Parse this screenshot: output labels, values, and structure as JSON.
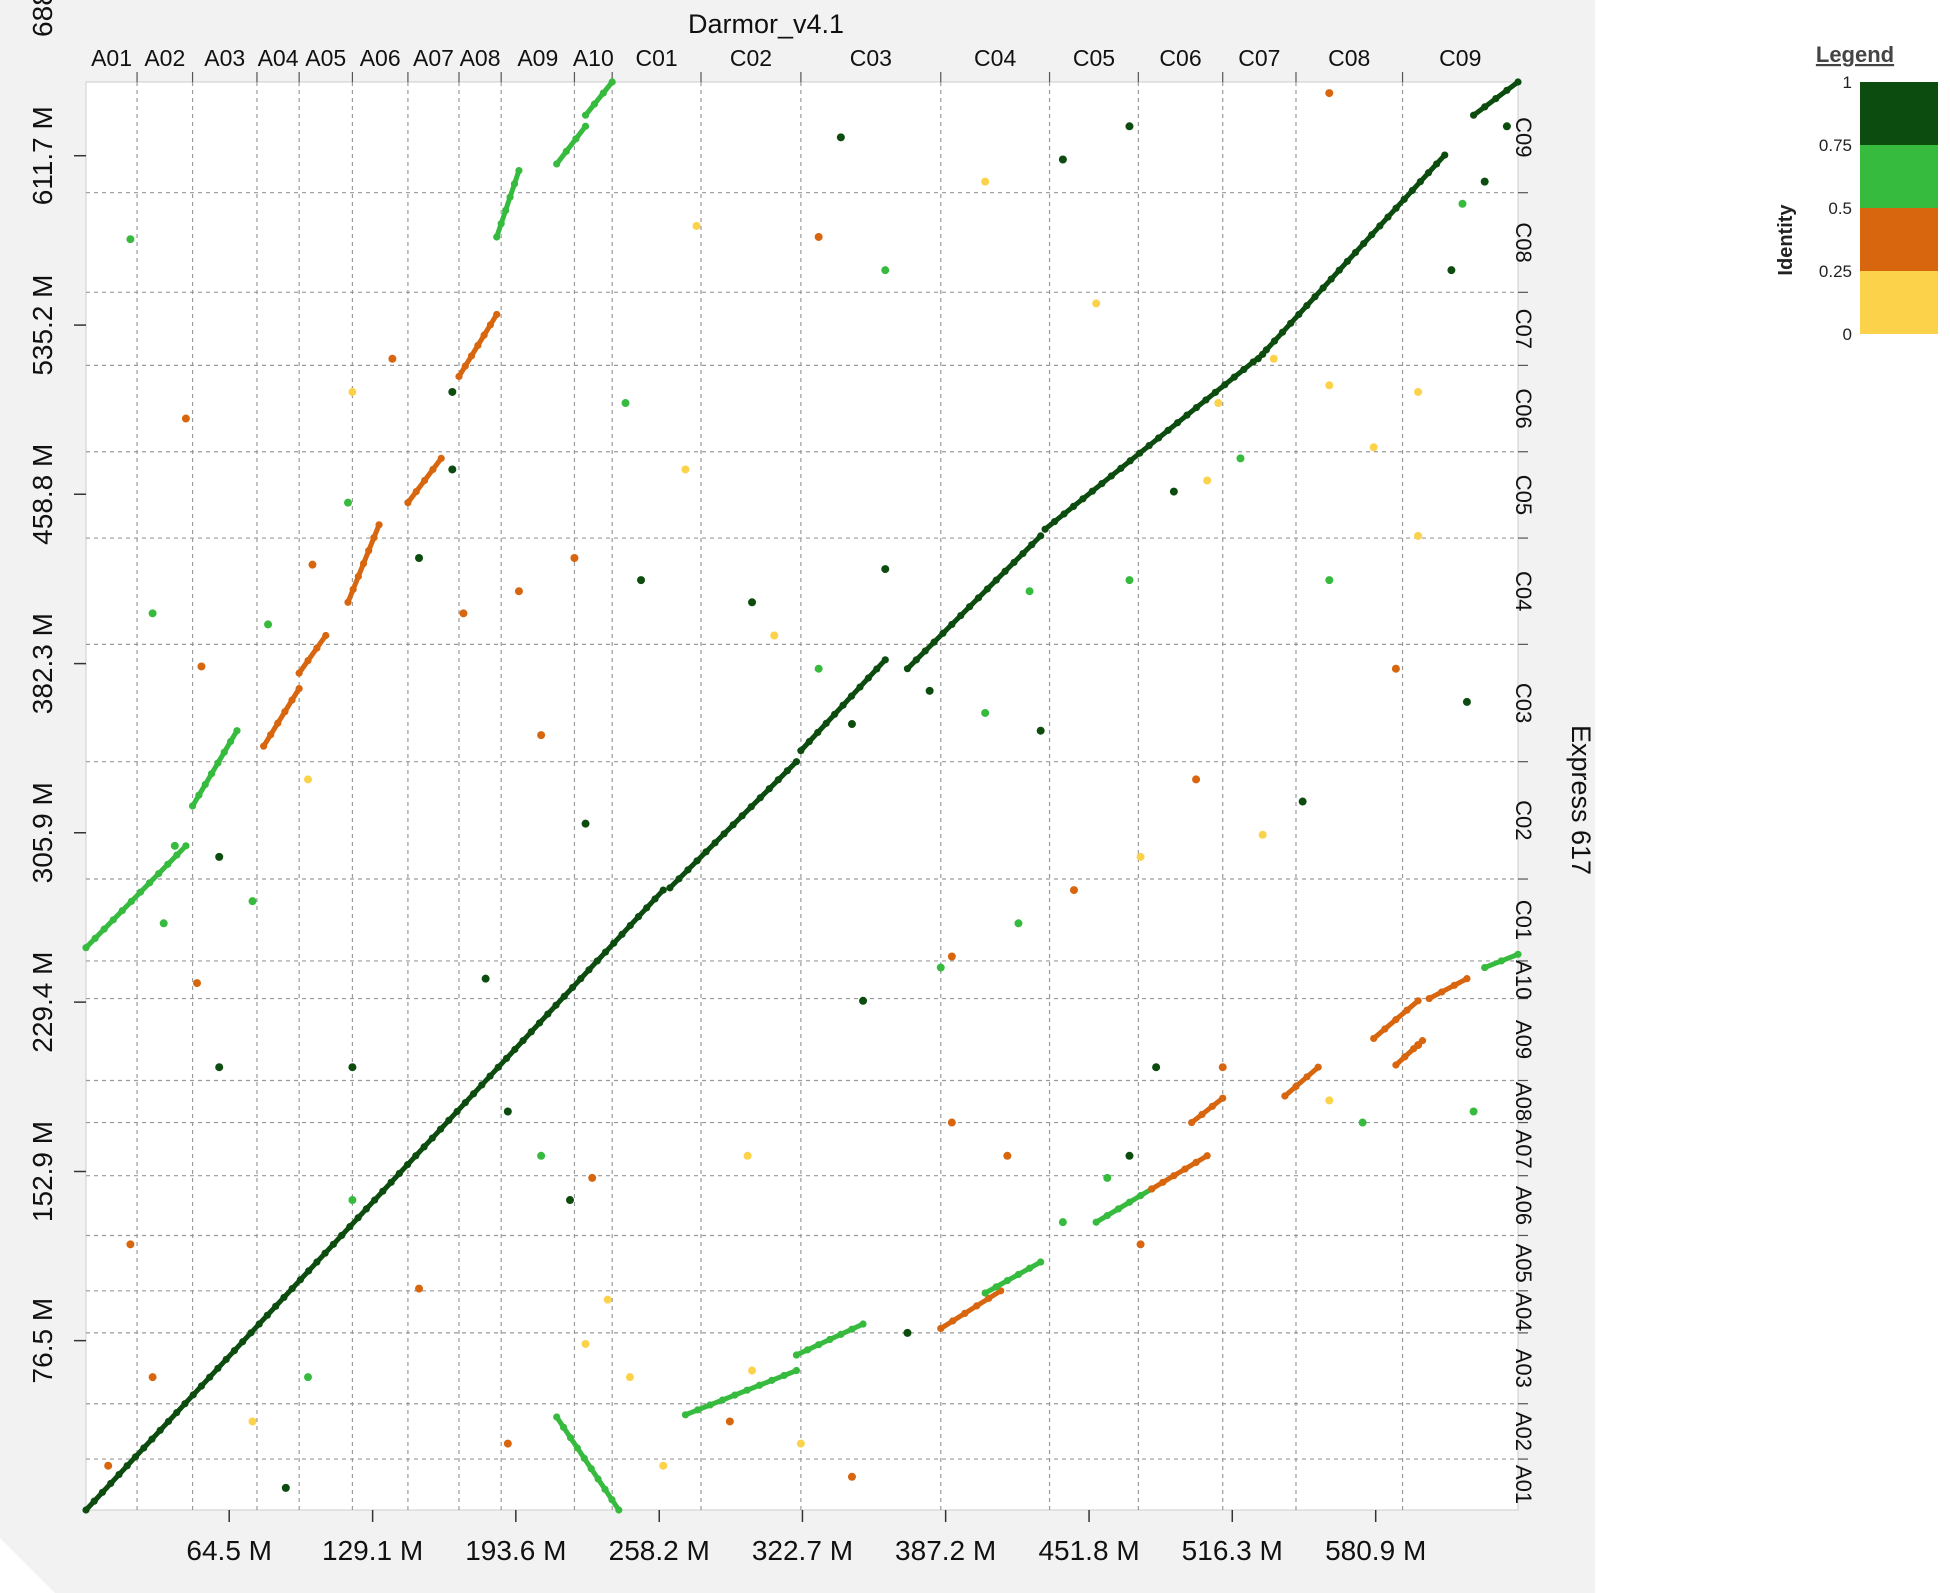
{
  "chart_data": {
    "type": "scatter",
    "title": "Darmor_v4.1",
    "xlabel": "",
    "ylabel": "Express 617",
    "x_axis_title": "Darmor_v4.1",
    "y_axis_title": "Express 617",
    "xlim": [
      0,
      645
    ],
    "ylim": [
      0,
      645
    ],
    "x_ticks": [
      64.5,
      129.1,
      193.6,
      258.2,
      322.7,
      387.2,
      451.8,
      516.3,
      580.9
    ],
    "x_tick_labels": [
      "64.5 M",
      "129.1 M",
      "193.6 M",
      "258.2 M",
      "322.7 M",
      "387.2 M",
      "451.8 M",
      "516.3 M",
      "580.9 M"
    ],
    "y_ticks": [
      76.5,
      152.9,
      229.4,
      305.9,
      382.3,
      458.8,
      535.2,
      611.7,
      688.2
    ],
    "y_tick_labels": [
      "76.5 M",
      "152.9 M",
      "229.4 M",
      "305.9 M",
      "382.3 M",
      "458.8 M",
      "535.2 M",
      "611.7 M",
      "688.2 M"
    ],
    "x_chromosomes": [
      {
        "name": "A01",
        "end": 23
      },
      {
        "name": "A02",
        "end": 48
      },
      {
        "name": "A03",
        "end": 77
      },
      {
        "name": "A04",
        "end": 96
      },
      {
        "name": "A05",
        "end": 120
      },
      {
        "name": "A06",
        "end": 145
      },
      {
        "name": "A07",
        "end": 168
      },
      {
        "name": "A08",
        "end": 187
      },
      {
        "name": "A09",
        "end": 220
      },
      {
        "name": "A10",
        "end": 237
      },
      {
        "name": "C01",
        "end": 277
      },
      {
        "name": "C02",
        "end": 322
      },
      {
        "name": "C03",
        "end": 385
      },
      {
        "name": "C04",
        "end": 434
      },
      {
        "name": "C05",
        "end": 474
      },
      {
        "name": "C06",
        "end": 512
      },
      {
        "name": "C07",
        "end": 545
      },
      {
        "name": "C08",
        "end": 593
      },
      {
        "name": "C09",
        "end": 645
      }
    ],
    "y_chromosomes": [
      {
        "name": "A01",
        "end": 23
      },
      {
        "name": "A02",
        "end": 48
      },
      {
        "name": "A03",
        "end": 80
      },
      {
        "name": "A04",
        "end": 99
      },
      {
        "name": "A05",
        "end": 124
      },
      {
        "name": "A06",
        "end": 151
      },
      {
        "name": "A07",
        "end": 175
      },
      {
        "name": "A08",
        "end": 194
      },
      {
        "name": "A09",
        "end": 231
      },
      {
        "name": "A10",
        "end": 248
      },
      {
        "name": "C01",
        "end": 285
      },
      {
        "name": "C02",
        "end": 338
      },
      {
        "name": "C03",
        "end": 391
      },
      {
        "name": "C04",
        "end": 439
      },
      {
        "name": "C05",
        "end": 478
      },
      {
        "name": "C06",
        "end": 517
      },
      {
        "name": "C07",
        "end": 550
      },
      {
        "name": "C08",
        "end": 595
      },
      {
        "name": "C09",
        "end": 645
      }
    ],
    "colors": {
      "0": "#fbd24a",
      "0.25": "#d8660f",
      "0.5": "#36bb3f",
      "0.75": "#0c4c0f"
    },
    "legend": {
      "title": "Legend",
      "axis_label": "Identity",
      "ticks": [
        "1",
        "0.75",
        "0.5",
        "0.25",
        "0"
      ],
      "bins": [
        {
          "from": 0.75,
          "to": 1,
          "color": "#0c4c0f"
        },
        {
          "from": 0.5,
          "to": 0.75,
          "color": "#36bb3f"
        },
        {
          "from": 0.25,
          "to": 0.5,
          "color": "#d8660f"
        },
        {
          "from": 0,
          "to": 0.25,
          "color": "#fbd24a"
        }
      ]
    },
    "segments": [
      {
        "x": [
          0,
          260
        ],
        "y": [
          0,
          280
        ],
        "identity": 0.9
      },
      {
        "x": [
          263,
          320
        ],
        "y": [
          281,
          338
        ],
        "identity": 0.9
      },
      {
        "x": [
          322,
          360
        ],
        "y": [
          343,
          384
        ],
        "identity": 0.9
      },
      {
        "x": [
          370,
          430
        ],
        "y": [
          380,
          440
        ],
        "identity": 0.9
      },
      {
        "x": [
          432,
          530
        ],
        "y": [
          443,
          522
        ],
        "identity": 0.9
      },
      {
        "x": [
          528,
          612
        ],
        "y": [
          520,
          612
        ],
        "identity": 0.9
      },
      {
        "x": [
          625,
          645
        ],
        "y": [
          630,
          645
        ],
        "identity": 0.9
      },
      {
        "x": [
          240,
          212
        ],
        "y": [
          0,
          42
        ],
        "identity": 0.6
      },
      {
        "x": [
          270,
          320
        ],
        "y": [
          43,
          63
        ],
        "identity": 0.6
      },
      {
        "x": [
          320,
          350
        ],
        "y": [
          70,
          84
        ],
        "identity": 0.6
      },
      {
        "x": [
          385,
          412
        ],
        "y": [
          82,
          99
        ],
        "identity": 0.3
      },
      {
        "x": [
          405,
          430
        ],
        "y": [
          98,
          112
        ],
        "identity": 0.6
      },
      {
        "x": [
          455,
          480
        ],
        "y": [
          130,
          145
        ],
        "identity": 0.6
      },
      {
        "x": [
          480,
          505
        ],
        "y": [
          145,
          160
        ],
        "identity": 0.3
      },
      {
        "x": [
          498,
          512
        ],
        "y": [
          175,
          186
        ],
        "identity": 0.3
      },
      {
        "x": [
          540,
          555
        ],
        "y": [
          187,
          200
        ],
        "identity": 0.3
      },
      {
        "x": [
          590,
          602
        ],
        "y": [
          201,
          212
        ],
        "identity": 0.3
      },
      {
        "x": [
          580,
          600
        ],
        "y": [
          213,
          230
        ],
        "identity": 0.3
      },
      {
        "x": [
          605,
          622
        ],
        "y": [
          231,
          240
        ],
        "identity": 0.3
      },
      {
        "x": [
          630,
          645
        ],
        "y": [
          245,
          251
        ],
        "identity": 0.6
      },
      {
        "x": [
          0,
          45
        ],
        "y": [
          254,
          300
        ],
        "identity": 0.6
      },
      {
        "x": [
          48,
          68
        ],
        "y": [
          318,
          352
        ],
        "identity": 0.6
      },
      {
        "x": [
          80,
          96
        ],
        "y": [
          345,
          371
        ],
        "identity": 0.3
      },
      {
        "x": [
          96,
          108
        ],
        "y": [
          378,
          395
        ],
        "identity": 0.3
      },
      {
        "x": [
          118,
          132
        ],
        "y": [
          410,
          445
        ],
        "identity": 0.3
      },
      {
        "x": [
          145,
          160
        ],
        "y": [
          455,
          475
        ],
        "identity": 0.3
      },
      {
        "x": [
          168,
          185
        ],
        "y": [
          512,
          540
        ],
        "identity": 0.3
      },
      {
        "x": [
          185,
          195
        ],
        "y": [
          575,
          605
        ],
        "identity": 0.6
      },
      {
        "x": [
          212,
          225
        ],
        "y": [
          608,
          625
        ],
        "identity": 0.6
      },
      {
        "x": [
          225,
          237
        ],
        "y": [
          630,
          645
        ],
        "identity": 0.6
      }
    ],
    "points": [
      {
        "x": 20,
        "y": 574,
        "identity": 0.6
      },
      {
        "x": 45,
        "y": 493,
        "identity": 0.3
      },
      {
        "x": 52,
        "y": 381,
        "identity": 0.3
      },
      {
        "x": 30,
        "y": 405,
        "identity": 0.6
      },
      {
        "x": 40,
        "y": 300,
        "identity": 0.6
      },
      {
        "x": 50,
        "y": 238,
        "identity": 0.3
      },
      {
        "x": 82,
        "y": 400,
        "identity": 0.6
      },
      {
        "x": 102,
        "y": 427,
        "identity": 0.3
      },
      {
        "x": 118,
        "y": 455,
        "identity": 0.6
      },
      {
        "x": 138,
        "y": 520,
        "identity": 0.3
      },
      {
        "x": 165,
        "y": 470,
        "identity": 0.9
      },
      {
        "x": 150,
        "y": 430,
        "identity": 0.9
      },
      {
        "x": 170,
        "y": 405,
        "identity": 0.3
      },
      {
        "x": 180,
        "y": 240,
        "identity": 0.9
      },
      {
        "x": 190,
        "y": 180,
        "identity": 0.9
      },
      {
        "x": 205,
        "y": 160,
        "identity": 0.6
      },
      {
        "x": 218,
        "y": 140,
        "identity": 0.9
      },
      {
        "x": 228,
        "y": 150,
        "identity": 0.3
      },
      {
        "x": 235,
        "y": 95,
        "identity": 0.0
      },
      {
        "x": 245,
        "y": 60,
        "identity": 0.0
      },
      {
        "x": 260,
        "y": 20,
        "identity": 0.0
      },
      {
        "x": 290,
        "y": 40,
        "identity": 0.3
      },
      {
        "x": 300,
        "y": 63,
        "identity": 0.0
      },
      {
        "x": 322,
        "y": 30,
        "identity": 0.0
      },
      {
        "x": 345,
        "y": 15,
        "identity": 0.3
      },
      {
        "x": 370,
        "y": 80,
        "identity": 0.9
      },
      {
        "x": 390,
        "y": 175,
        "identity": 0.3
      },
      {
        "x": 415,
        "y": 160,
        "identity": 0.3
      },
      {
        "x": 440,
        "y": 130,
        "identity": 0.6
      },
      {
        "x": 475,
        "y": 120,
        "identity": 0.3
      },
      {
        "x": 482,
        "y": 200,
        "identity": 0.9
      },
      {
        "x": 512,
        "y": 200,
        "identity": 0.3
      },
      {
        "x": 560,
        "y": 185,
        "identity": 0.0
      },
      {
        "x": 575,
        "y": 175,
        "identity": 0.6
      },
      {
        "x": 600,
        "y": 210,
        "identity": 0.3
      },
      {
        "x": 625,
        "y": 180,
        "identity": 0.6
      },
      {
        "x": 548,
        "y": 320,
        "identity": 0.9
      },
      {
        "x": 530,
        "y": 305,
        "identity": 0.0
      },
      {
        "x": 475,
        "y": 295,
        "identity": 0.0
      },
      {
        "x": 500,
        "y": 330,
        "identity": 0.3
      },
      {
        "x": 445,
        "y": 280,
        "identity": 0.3
      },
      {
        "x": 420,
        "y": 265,
        "identity": 0.6
      },
      {
        "x": 390,
        "y": 250,
        "identity": 0.3
      },
      {
        "x": 430,
        "y": 352,
        "identity": 0.9
      },
      {
        "x": 405,
        "y": 360,
        "identity": 0.6
      },
      {
        "x": 380,
        "y": 370,
        "identity": 0.9
      },
      {
        "x": 345,
        "y": 355,
        "identity": 0.9
      },
      {
        "x": 330,
        "y": 380,
        "identity": 0.6
      },
      {
        "x": 310,
        "y": 395,
        "identity": 0.0
      },
      {
        "x": 300,
        "y": 410,
        "identity": 0.9
      },
      {
        "x": 360,
        "y": 425,
        "identity": 0.9
      },
      {
        "x": 425,
        "y": 415,
        "identity": 0.6
      },
      {
        "x": 470,
        "y": 420,
        "identity": 0.6
      },
      {
        "x": 490,
        "y": 460,
        "identity": 0.9
      },
      {
        "x": 520,
        "y": 475,
        "identity": 0.6
      },
      {
        "x": 510,
        "y": 500,
        "identity": 0.0
      },
      {
        "x": 560,
        "y": 420,
        "identity": 0.6
      },
      {
        "x": 590,
        "y": 380,
        "identity": 0.3
      },
      {
        "x": 622,
        "y": 365,
        "identity": 0.9
      },
      {
        "x": 600,
        "y": 440,
        "identity": 0.0
      },
      {
        "x": 560,
        "y": 508,
        "identity": 0.0
      },
      {
        "x": 600,
        "y": 505,
        "identity": 0.0
      },
      {
        "x": 615,
        "y": 560,
        "identity": 0.9
      },
      {
        "x": 620,
        "y": 590,
        "identity": 0.6
      },
      {
        "x": 630,
        "y": 600,
        "identity": 0.9
      },
      {
        "x": 640,
        "y": 625,
        "identity": 0.9
      },
      {
        "x": 560,
        "y": 640,
        "identity": 0.3
      },
      {
        "x": 535,
        "y": 520,
        "identity": 0.0
      },
      {
        "x": 440,
        "y": 610,
        "identity": 0.9
      },
      {
        "x": 470,
        "y": 625,
        "identity": 0.9
      },
      {
        "x": 405,
        "y": 600,
        "identity": 0.0
      },
      {
        "x": 360,
        "y": 560,
        "identity": 0.6
      },
      {
        "x": 330,
        "y": 575,
        "identity": 0.3
      },
      {
        "x": 340,
        "y": 620,
        "identity": 0.9
      },
      {
        "x": 275,
        "y": 580,
        "identity": 0.0
      },
      {
        "x": 270,
        "y": 470,
        "identity": 0.0
      },
      {
        "x": 243,
        "y": 500,
        "identity": 0.6
      },
      {
        "x": 250,
        "y": 420,
        "identity": 0.9
      },
      {
        "x": 220,
        "y": 430,
        "identity": 0.3
      },
      {
        "x": 225,
        "y": 310,
        "identity": 0.9
      },
      {
        "x": 205,
        "y": 350,
        "identity": 0.3
      },
      {
        "x": 195,
        "y": 415,
        "identity": 0.3
      },
      {
        "x": 165,
        "y": 505,
        "identity": 0.9
      },
      {
        "x": 120,
        "y": 505,
        "identity": 0.0
      },
      {
        "x": 100,
        "y": 330,
        "identity": 0.0
      },
      {
        "x": 75,
        "y": 275,
        "identity": 0.6
      },
      {
        "x": 60,
        "y": 295,
        "identity": 0.9
      },
      {
        "x": 35,
        "y": 265,
        "identity": 0.6
      },
      {
        "x": 120,
        "y": 140,
        "identity": 0.6
      },
      {
        "x": 150,
        "y": 100,
        "identity": 0.3
      },
      {
        "x": 100,
        "y": 60,
        "identity": 0.6
      },
      {
        "x": 120,
        "y": 200,
        "identity": 0.9
      },
      {
        "x": 60,
        "y": 200,
        "identity": 0.9
      },
      {
        "x": 20,
        "y": 120,
        "identity": 0.3
      },
      {
        "x": 10,
        "y": 20,
        "identity": 0.3
      },
      {
        "x": 30,
        "y": 60,
        "identity": 0.3
      },
      {
        "x": 90,
        "y": 10,
        "identity": 0.9
      },
      {
        "x": 75,
        "y": 40,
        "identity": 0.0
      },
      {
        "x": 190,
        "y": 30,
        "identity": 0.3
      },
      {
        "x": 225,
        "y": 75,
        "identity": 0.0
      },
      {
        "x": 298,
        "y": 160,
        "identity": 0.0
      },
      {
        "x": 350,
        "y": 230,
        "identity": 0.9
      },
      {
        "x": 385,
        "y": 245,
        "identity": 0.6
      },
      {
        "x": 460,
        "y": 150,
        "identity": 0.6
      },
      {
        "x": 470,
        "y": 160,
        "identity": 0.9
      },
      {
        "x": 455,
        "y": 545,
        "identity": 0.0
      },
      {
        "x": 505,
        "y": 465,
        "identity": 0.0
      },
      {
        "x": 580,
        "y": 480,
        "identity": 0.0
      }
    ]
  }
}
